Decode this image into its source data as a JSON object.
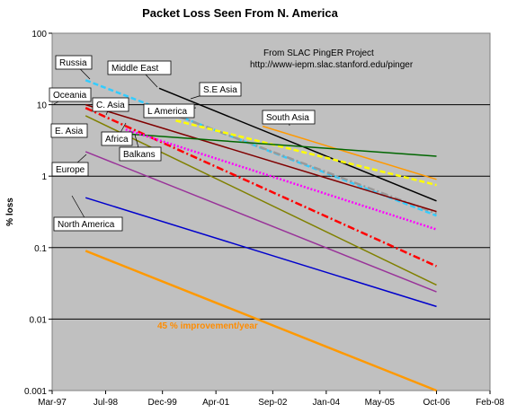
{
  "chart_data": {
    "type": "line",
    "title": "Packet Loss Seen From N. America",
    "xlabel": "",
    "ylabel": "% loss",
    "y_scale": "log",
    "ylim": [
      0.001,
      100
    ],
    "y_ticks": [
      "0.001",
      "0.01",
      "0.1",
      "1",
      "10",
      "100"
    ],
    "xlim": [
      "1997-03",
      "2008-02"
    ],
    "x_ticks": [
      "Mar-97",
      "Jul-98",
      "Dec-99",
      "Apr-01",
      "Sep-02",
      "Jan-04",
      "May-05",
      "Oct-06",
      "Feb-08"
    ],
    "grid": "horizontal",
    "plot_background": "#c0c0c0",
    "annotations": [
      "From SLAC PingER Project",
      "http://www-iepm.slac.stanford.edu/pinger"
    ],
    "improvement_label": "45 % improvement/year",
    "series": [
      {
        "name": "Russia",
        "color": "#33ccff",
        "style": "dashed",
        "x": [
          "1998-01",
          "2006-10"
        ],
        "y": [
          22,
          0.28
        ]
      },
      {
        "name": "Middle East",
        "color": "#000000",
        "style": "solid",
        "x": [
          "1999-11",
          "2006-10"
        ],
        "y": [
          17,
          0.45
        ]
      },
      {
        "name": "S.E Asia",
        "color": "#999999",
        "style": "dashdot",
        "x": [
          "2000-01",
          "2006-10"
        ],
        "y": [
          8,
          0.3
        ]
      },
      {
        "name": "Oceania",
        "color": "#800000",
        "style": "solid",
        "x": [
          "1998-01",
          "2006-10"
        ],
        "y": [
          10,
          0.32
        ]
      },
      {
        "name": "C. Asia",
        "color": "#ff0000",
        "style": "dashdot",
        "x": [
          "1998-01",
          "2006-10"
        ],
        "y": [
          9,
          0.055
        ]
      },
      {
        "name": "L America",
        "color": "#ffff00",
        "style": "dashed",
        "x": [
          "2000-04",
          "2006-10"
        ],
        "y": [
          6,
          0.75
        ]
      },
      {
        "name": "South Asia",
        "color": "#ff9900",
        "style": "solid",
        "x": [
          "2002-06",
          "2006-10"
        ],
        "y": [
          5,
          0.9
        ]
      },
      {
        "name": "Africa",
        "color": "#006600",
        "style": "solid",
        "x": [
          "1998-10",
          "2006-10"
        ],
        "y": [
          4,
          1.9
        ]
      },
      {
        "name": "Balkans",
        "color": "#ff00ff",
        "style": "dotted",
        "x": [
          "1999-01",
          "2006-10"
        ],
        "y": [
          4.5,
          0.18
        ]
      },
      {
        "name": "E. Asia",
        "color": "#808000",
        "style": "solid",
        "x": [
          "1998-01",
          "2006-10"
        ],
        "y": [
          7,
          0.03
        ]
      },
      {
        "name": "Europe",
        "color": "#993399",
        "style": "solid",
        "x": [
          "1998-01",
          "2006-10"
        ],
        "y": [
          2.2,
          0.024
        ]
      },
      {
        "name": "North America",
        "color": "#0000cc",
        "style": "solid",
        "x": [
          "1998-01",
          "2006-10"
        ],
        "y": [
          0.5,
          0.015
        ]
      },
      {
        "name": "",
        "color": "#ff9900",
        "style": "solid-thick",
        "x": [
          "1998-01",
          "2006-10"
        ],
        "y": [
          0.09,
          0.001
        ]
      }
    ],
    "callouts": [
      "Russia",
      "Middle East",
      "S.E Asia",
      "Oceania",
      "C. Asia",
      "L America",
      "South Asia",
      "E. Asia",
      "Africa",
      "Balkans",
      "Europe",
      "North America"
    ]
  }
}
